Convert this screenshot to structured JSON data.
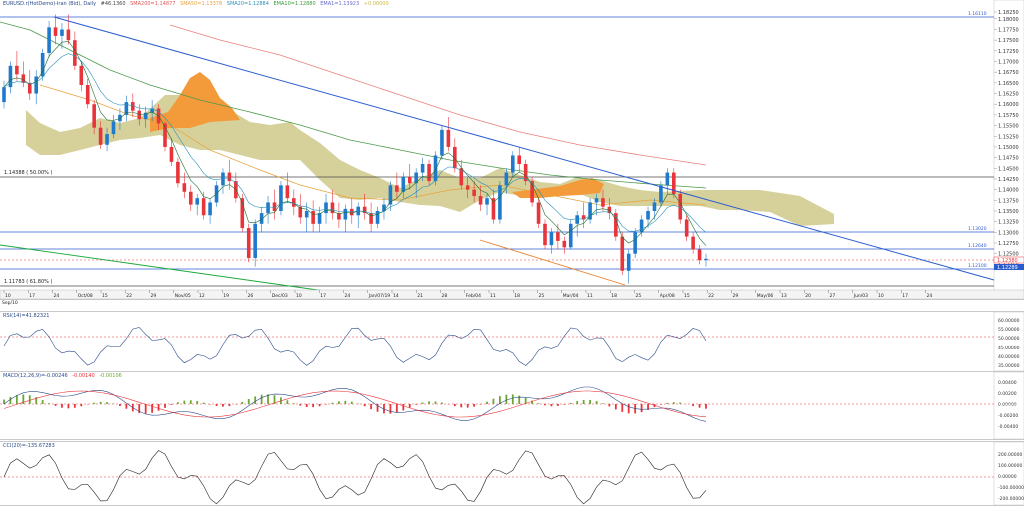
{
  "header": {
    "symbol": "EURUSD",
    "items": [
      "EURUSD.r(HotDemo)-Iran (Bid), Daily",
      "#46.1360",
      "SMA200=1.14877",
      "SMA50=1.13378",
      "SMA20=1.12884",
      "EMA10=1.12880",
      "EMA1=1.13923",
      "+0.00000"
    ],
    "colors": [
      "#2b4a8a",
      "#444444",
      "#e05a5a",
      "#e8a23a",
      "#2a8fb8",
      "#3a9a3a",
      "#6a6ad0",
      "#c8b840"
    ]
  },
  "price_axis": {
    "labels": [
      "1.18000",
      "1.17750",
      "1.17500",
      "1.17250",
      "1.17000",
      "1.16750",
      "1.16500",
      "1.16250",
      "1.16000",
      "1.15750",
      "1.15500",
      "1.15250",
      "1.15000",
      "1.14750",
      "1.14500",
      "1.14250",
      "1.14000",
      "1.13750",
      "1.13500",
      "1.13250",
      "1.13000",
      "1.12750",
      "1.12500",
      "1.12250"
    ],
    "top_label": "1.18250"
  },
  "date_axis": {
    "labels": [
      "10",
      "17",
      "24",
      "Oct/08",
      "15",
      "22",
      "29",
      "Nov/05",
      "12",
      "19",
      "26",
      "Dec/03",
      "10",
      "17",
      "24",
      "Jan/07/19",
      "14",
      "21",
      "28",
      "Feb/04",
      "11",
      "18",
      "25",
      "Mar/04",
      "11",
      "18",
      "25",
      "Apr/08",
      "15",
      "22",
      "29",
      "May/06",
      "13",
      "20",
      "27",
      "Jun/03",
      "10",
      "17",
      "24"
    ],
    "first": "Sep/10"
  },
  "levels": {
    "fib_50": "1.14388 ( 50.00% )",
    "fib_61": "1.11783 ( 61.80% )",
    "top_level": "1.16110",
    "mid_level_1": "1.13020",
    "mid_level_2": "1.12640",
    "bottom_level": "1.12100"
  },
  "current_price": {
    "bid": "1.12380",
    "ask": "1.12289"
  },
  "rsi": {
    "title": "RSI(14)=41.82321",
    "axis": [
      "60.00000",
      "55.00000",
      "50.00000",
      "45.00000",
      "40.00000",
      "35.00000"
    ],
    "current": "41.82321"
  },
  "macd": {
    "title": "MACD(12,26,9)=-0.00246",
    "signal_label": "-0.00140",
    "hist_label": "-0.00106",
    "axis": [
      "0.00400",
      "0.00200",
      "0.00000",
      "-0.00200",
      "-0.00400"
    ],
    "current": "-0.00246"
  },
  "cci": {
    "title": "CCI(20)=-135.67283",
    "axis": [
      "200.00000",
      "100.00000",
      "0.00000",
      "-100.00000",
      "-200.00000"
    ],
    "current": "-135.67283"
  },
  "chart_data": {
    "type": "candlestick",
    "ylim": [
      1.1165,
      1.183
    ],
    "candles": [
      [
        1.1605,
        1.1655,
        1.159,
        1.164
      ],
      [
        1.164,
        1.17,
        1.1625,
        1.169
      ],
      [
        1.169,
        1.1725,
        1.1655,
        1.167
      ],
      [
        1.167,
        1.17,
        1.164,
        1.165
      ],
      [
        1.165,
        1.168,
        1.161,
        1.1625
      ],
      [
        1.1625,
        1.168,
        1.16,
        1.1665
      ],
      [
        1.1665,
        1.173,
        1.1655,
        1.172
      ],
      [
        1.172,
        1.1795,
        1.171,
        1.178
      ],
      [
        1.178,
        1.181,
        1.174,
        1.176
      ],
      [
        1.176,
        1.179,
        1.173,
        1.1775
      ],
      [
        1.1775,
        1.181,
        1.174,
        1.175
      ],
      [
        1.175,
        1.177,
        1.168,
        1.169
      ],
      [
        1.169,
        1.17,
        1.163,
        1.1645
      ],
      [
        1.1645,
        1.166,
        1.159,
        1.16
      ],
      [
        1.16,
        1.161,
        1.153,
        1.1545
      ],
      [
        1.1545,
        1.156,
        1.1495,
        1.1505
      ],
      [
        1.1505,
        1.1545,
        1.149,
        1.153
      ],
      [
        1.153,
        1.1575,
        1.152,
        1.156
      ],
      [
        1.156,
        1.159,
        1.154,
        1.1575
      ],
      [
        1.1575,
        1.162,
        1.156,
        1.1605
      ],
      [
        1.1605,
        1.1625,
        1.157,
        1.1585
      ],
      [
        1.1585,
        1.16,
        1.155,
        1.1565
      ],
      [
        1.1565,
        1.1595,
        1.1545,
        1.158
      ],
      [
        1.158,
        1.161,
        1.156,
        1.159
      ],
      [
        1.159,
        1.16,
        1.154,
        1.1555
      ],
      [
        1.1555,
        1.156,
        1.149,
        1.15
      ],
      [
        1.15,
        1.152,
        1.1455,
        1.1465
      ],
      [
        1.1465,
        1.1475,
        1.1405,
        1.1415
      ],
      [
        1.1415,
        1.144,
        1.138,
        1.1395
      ],
      [
        1.1395,
        1.141,
        1.135,
        1.1365
      ],
      [
        1.1365,
        1.139,
        1.134,
        1.138
      ],
      [
        1.138,
        1.1395,
        1.133,
        1.134
      ],
      [
        1.134,
        1.138,
        1.132,
        1.137
      ],
      [
        1.137,
        1.142,
        1.136,
        1.141
      ],
      [
        1.141,
        1.145,
        1.139,
        1.144
      ],
      [
        1.144,
        1.147,
        1.14,
        1.142
      ],
      [
        1.142,
        1.144,
        1.137,
        1.138
      ],
      [
        1.138,
        1.139,
        1.13,
        1.131
      ],
      [
        1.131,
        1.132,
        1.123,
        1.124
      ],
      [
        1.124,
        1.133,
        1.122,
        1.132
      ],
      [
        1.132,
        1.136,
        1.13,
        1.1345
      ],
      [
        1.1345,
        1.1385,
        1.132,
        1.137
      ],
      [
        1.137,
        1.14,
        1.133,
        1.135
      ],
      [
        1.135,
        1.142,
        1.134,
        1.141
      ],
      [
        1.141,
        1.144,
        1.137,
        1.138
      ],
      [
        1.138,
        1.14,
        1.134,
        1.136
      ],
      [
        1.136,
        1.139,
        1.132,
        1.1335
      ],
      [
        1.1335,
        1.137,
        1.13,
        1.135
      ],
      [
        1.135,
        1.1375,
        1.13,
        1.132
      ],
      [
        1.132,
        1.136,
        1.13,
        1.1345
      ],
      [
        1.1345,
        1.139,
        1.132,
        1.137
      ],
      [
        1.137,
        1.14,
        1.133,
        1.1345
      ],
      [
        1.1345,
        1.137,
        1.131,
        1.133
      ],
      [
        1.133,
        1.1365,
        1.13,
        1.1355
      ],
      [
        1.1355,
        1.138,
        1.132,
        1.134
      ],
      [
        1.134,
        1.137,
        1.131,
        1.136
      ],
      [
        1.136,
        1.139,
        1.133,
        1.1345
      ],
      [
        1.1345,
        1.137,
        1.13,
        1.132
      ],
      [
        1.132,
        1.136,
        1.131,
        1.135
      ],
      [
        1.135,
        1.138,
        1.133,
        1.1365
      ],
      [
        1.1365,
        1.142,
        1.135,
        1.141
      ],
      [
        1.141,
        1.144,
        1.138,
        1.1395
      ],
      [
        1.1395,
        1.144,
        1.138,
        1.143
      ],
      [
        1.143,
        1.146,
        1.14,
        1.1415
      ],
      [
        1.1415,
        1.145,
        1.138,
        1.144
      ],
      [
        1.144,
        1.1475,
        1.142,
        1.146
      ],
      [
        1.146,
        1.147,
        1.141,
        1.142
      ],
      [
        1.142,
        1.149,
        1.141,
        1.148
      ],
      [
        1.148,
        1.155,
        1.147,
        1.154
      ],
      [
        1.154,
        1.157,
        1.149,
        1.15
      ],
      [
        1.15,
        1.152,
        1.144,
        1.145
      ],
      [
        1.145,
        1.147,
        1.14,
        1.141
      ],
      [
        1.141,
        1.143,
        1.138,
        1.14
      ],
      [
        1.14,
        1.142,
        1.137,
        1.1385
      ],
      [
        1.1385,
        1.141,
        1.135,
        1.1365
      ],
      [
        1.1365,
        1.139,
        1.134,
        1.138
      ],
      [
        1.138,
        1.14,
        1.132,
        1.133
      ],
      [
        1.133,
        1.142,
        1.132,
        1.141
      ],
      [
        1.141,
        1.145,
        1.139,
        1.144
      ],
      [
        1.144,
        1.149,
        1.143,
        1.148
      ],
      [
        1.148,
        1.15,
        1.144,
        1.146
      ],
      [
        1.146,
        1.147,
        1.141,
        1.142
      ],
      [
        1.142,
        1.143,
        1.136,
        1.137
      ],
      [
        1.137,
        1.138,
        1.131,
        1.132
      ],
      [
        1.132,
        1.133,
        1.126,
        1.127
      ],
      [
        1.127,
        1.131,
        1.125,
        1.13
      ],
      [
        1.13,
        1.132,
        1.126,
        1.128
      ],
      [
        1.128,
        1.129,
        1.125,
        1.1265
      ],
      [
        1.1265,
        1.133,
        1.126,
        1.132
      ],
      [
        1.132,
        1.135,
        1.129,
        1.134
      ],
      [
        1.134,
        1.137,
        1.131,
        1.133
      ],
      [
        1.133,
        1.138,
        1.132,
        1.137
      ],
      [
        1.137,
        1.139,
        1.134,
        1.138
      ],
      [
        1.138,
        1.14,
        1.135,
        1.136
      ],
      [
        1.136,
        1.138,
        1.133,
        1.1345
      ],
      [
        1.1345,
        1.1355,
        1.128,
        1.129
      ],
      [
        1.129,
        1.13,
        1.12,
        1.121
      ],
      [
        1.121,
        1.126,
        1.118,
        1.125
      ],
      [
        1.125,
        1.131,
        1.124,
        1.13
      ],
      [
        1.13,
        1.134,
        1.129,
        1.133
      ],
      [
        1.133,
        1.136,
        1.131,
        1.135
      ],
      [
        1.135,
        1.138,
        1.133,
        1.137
      ],
      [
        1.137,
        1.142,
        1.136,
        1.141
      ],
      [
        1.141,
        1.145,
        1.139,
        1.144
      ],
      [
        1.144,
        1.145,
        1.138,
        1.139
      ],
      [
        1.139,
        1.14,
        1.132,
        1.133
      ],
      [
        1.133,
        1.134,
        1.128,
        1.129
      ],
      [
        1.129,
        1.13,
        1.125,
        1.126
      ],
      [
        1.126,
        1.127,
        1.1225,
        1.1235
      ],
      [
        1.1235,
        1.125,
        1.122,
        1.1238
      ]
    ]
  },
  "axis_colors": {
    "bg": "#ffffff",
    "grid": "#e3e3e3",
    "up": "#1f7acb",
    "down": "#e8343a",
    "cloud": "#cfc98a",
    "cloud_dark": "#f39a3a",
    "trend": "#2b5ccf"
  }
}
